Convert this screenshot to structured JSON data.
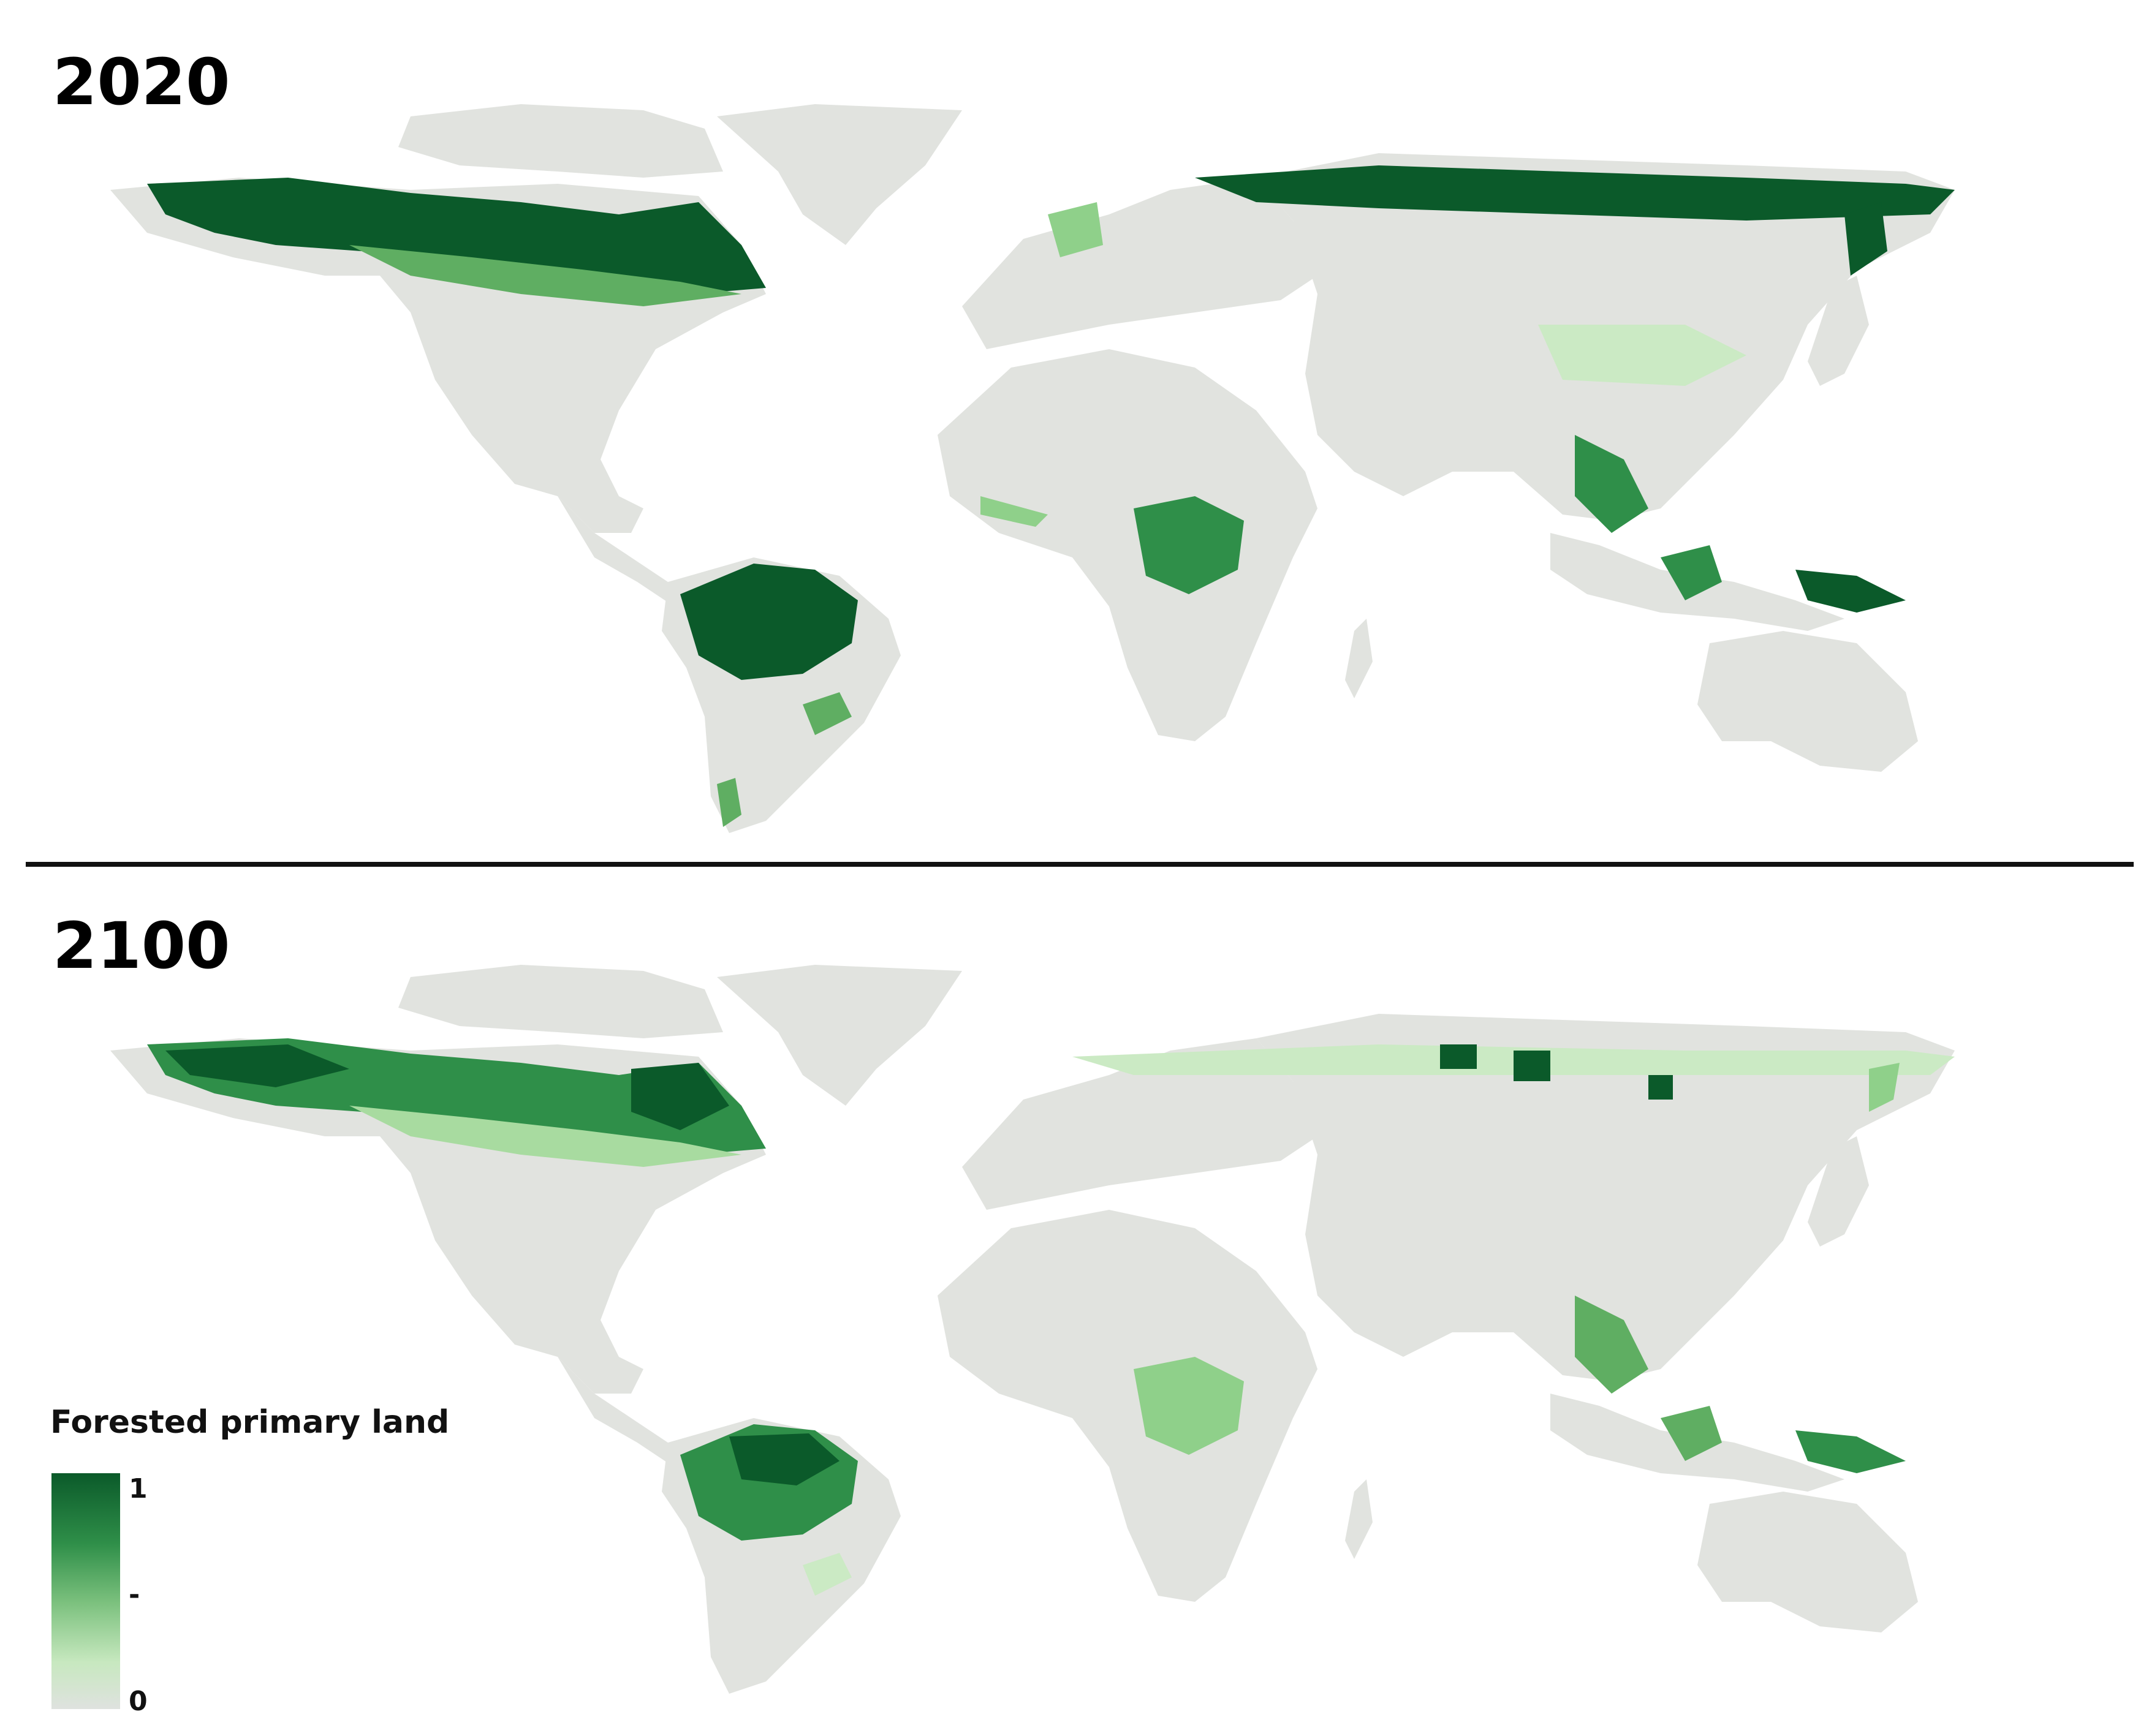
{
  "panels": [
    {
      "title": "2020"
    },
    {
      "title": "2100"
    }
  ],
  "legend": {
    "title": "Forested primary land",
    "ticks": [
      "1",
      "-",
      "0"
    ]
  },
  "colors": {
    "land": "#e1e3df",
    "forest_dark": "#0b5a2a",
    "forest_mid": "#2f8f49",
    "forest_light": "#8fd08a",
    "forest_faint": "#cbeac4",
    "divider": "#111111"
  },
  "icons": [
    "world-map"
  ]
}
